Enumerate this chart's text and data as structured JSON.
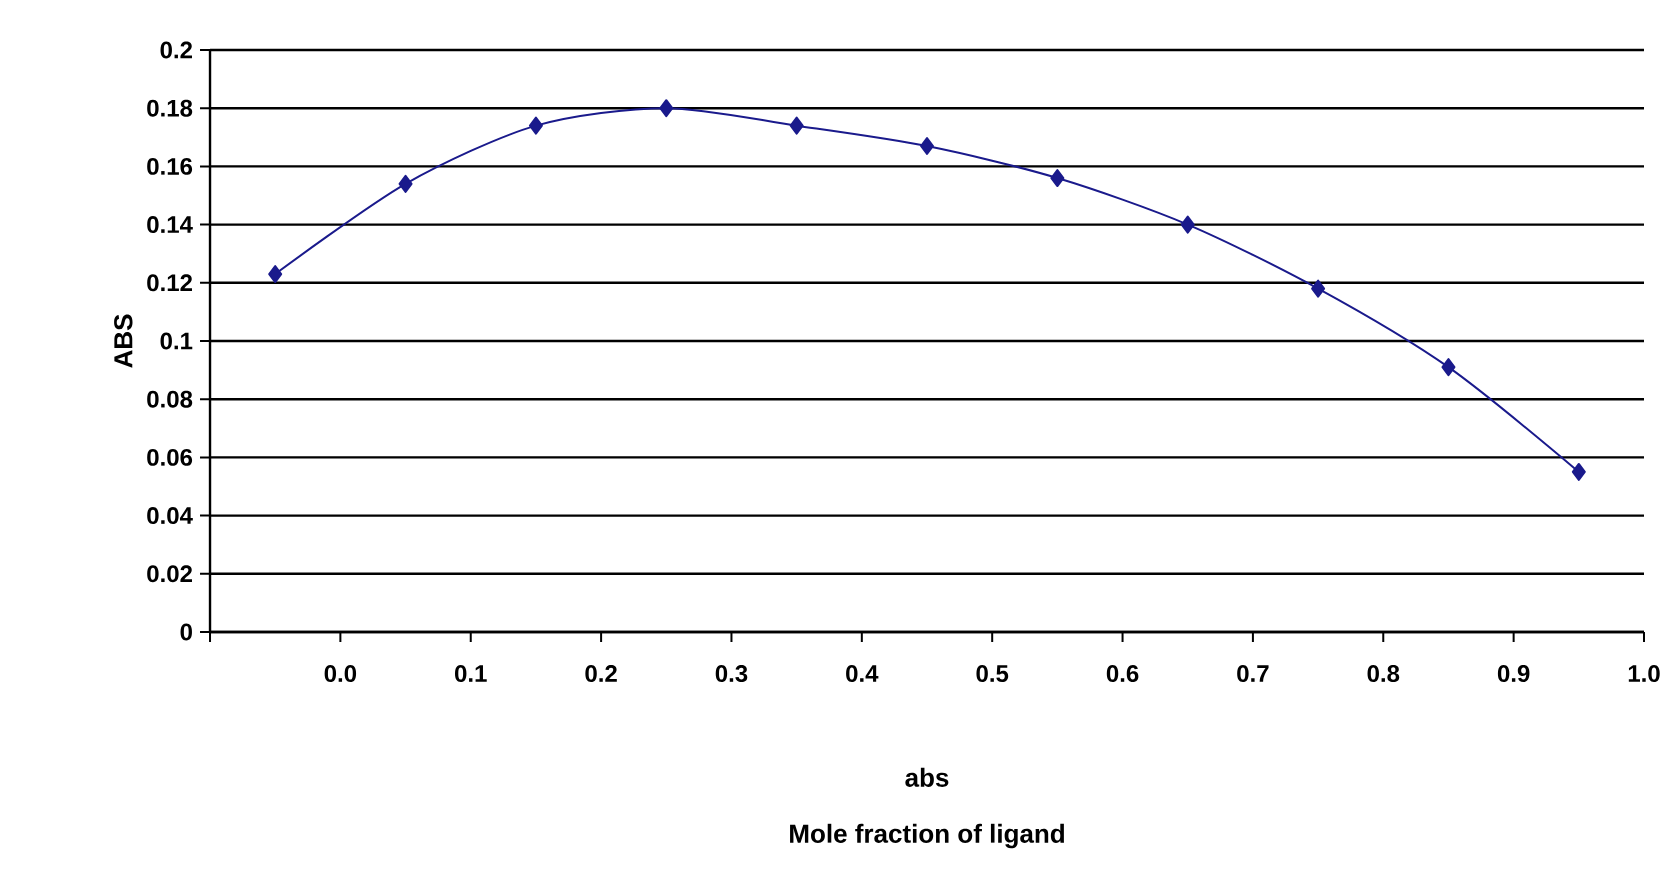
{
  "chart_data": {
    "type": "line",
    "ylabel": "ABS",
    "xlabel": "abs",
    "annotations": [
      "Mole fraction of ligand"
    ],
    "x": [
      -0.05,
      0.05,
      0.15,
      0.25,
      0.35,
      0.45,
      0.55,
      0.65,
      0.75,
      0.85,
      0.95
    ],
    "series": [
      {
        "color": "#1a1a8c",
        "values": [
          0.123,
          0.154,
          0.174,
          0.18,
          0.174,
          0.167,
          0.156,
          0.14,
          0.118,
          0.091,
          0.055
        ]
      }
    ],
    "xlim": [
      -0.1,
      1.0
    ],
    "xticks": [
      {
        "value": -0.1,
        "label": null
      },
      {
        "value": 0,
        "label": "0.0"
      },
      0.1,
      0.2,
      0.3,
      0.4,
      0.5,
      0.6,
      0.7,
      0.8,
      0.9,
      {
        "value": 1.0,
        "label": "1.0"
      }
    ],
    "ylim": [
      0,
      0.2
    ],
    "yticks": [
      0,
      0.02,
      0.04,
      0.06,
      0.08,
      0.1,
      0.12,
      0.14,
      0.16,
      0.18,
      0.2
    ],
    "grid": "y",
    "marker": "diamond",
    "line_style": "solid"
  }
}
